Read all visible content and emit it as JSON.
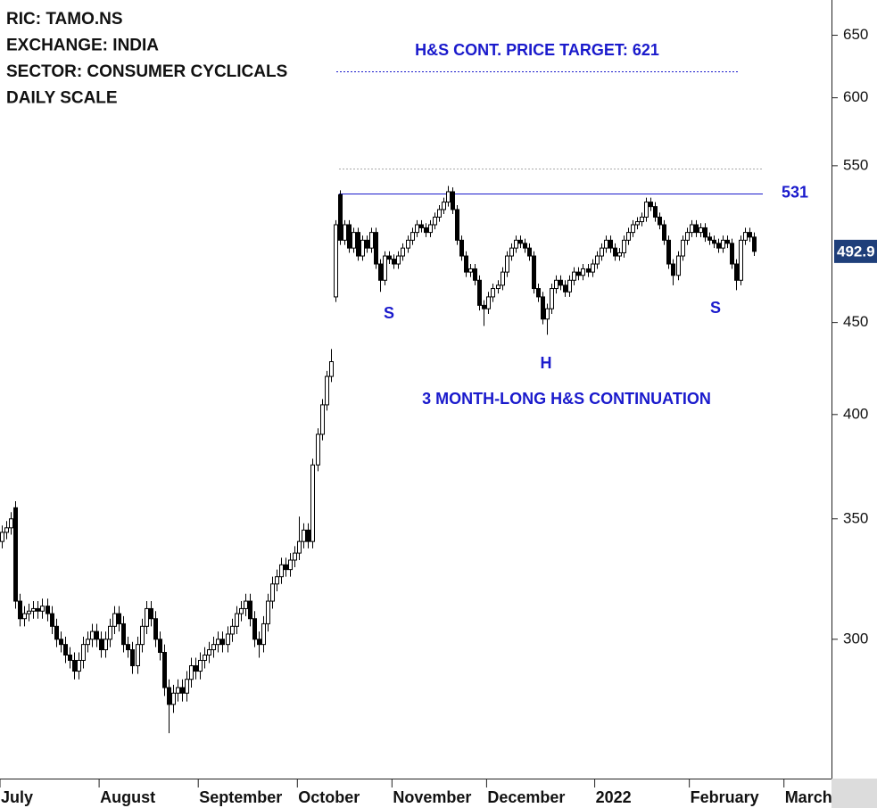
{
  "chart_data": {
    "type": "candlestick",
    "header_lines": [
      "RIC: TAMO.NS",
      "EXCHANGE: INDIA",
      "SECTOR: CONSUMER CYCLICALS",
      "DAILY SCALE"
    ],
    "annotations": [
      "H&S CONT. PRICE TARGET: 621",
      "S",
      "H",
      "S",
      "3 MONTH-LONG H&S CONTINUATION"
    ],
    "log_scale": true,
    "ylim": [
      251,
      680
    ],
    "yticks": [
      300,
      350,
      400,
      450,
      550,
      600,
      650
    ],
    "up_color": "#ffffff",
    "down_color": "#000000",
    "last_price_color": "#1f3f7a",
    "reference_lines": [
      {
        "value": 531,
        "color": "#1a1acc",
        "style": "solid"
      },
      {
        "value": 621,
        "color": "#1a1acc",
        "style": "dotted"
      },
      {
        "value": 548,
        "color": "#aaaaaa",
        "style": "dotted"
      }
    ],
    "categories": [
      "July",
      null,
      null,
      null,
      null,
      null,
      null,
      null,
      null,
      null,
      null,
      null,
      null,
      null,
      null,
      null,
      null,
      null,
      null,
      null,
      null,
      null,
      "August",
      null,
      null,
      null,
      null,
      null,
      null,
      null,
      null,
      null,
      null,
      null,
      null,
      null,
      null,
      null,
      null,
      null,
      null,
      null,
      null,
      null,
      "September",
      null,
      null,
      null,
      null,
      null,
      null,
      null,
      null,
      null,
      null,
      null,
      null,
      null,
      null,
      null,
      null,
      null,
      null,
      null,
      null,
      null,
      "October",
      null,
      null,
      null,
      null,
      null,
      null,
      null,
      null,
      null,
      null,
      null,
      null,
      null,
      null,
      null,
      null,
      null,
      null,
      null,
      null,
      "November",
      null,
      null,
      null,
      null,
      null,
      null,
      null,
      null,
      null,
      null,
      null,
      null,
      null,
      null,
      null,
      null,
      null,
      null,
      null,
      null,
      "December",
      null,
      null,
      null,
      null,
      null,
      null,
      null,
      null,
      null,
      null,
      null,
      null,
      null,
      null,
      null,
      null,
      null,
      null,
      null,
      null,
      null,
      null,
      null,
      "2022",
      null,
      null,
      null,
      null,
      null,
      null,
      null,
      null,
      null,
      null,
      null,
      null,
      null,
      null,
      null,
      null,
      null,
      null,
      null,
      null,
      "February",
      null,
      null,
      null,
      null,
      null,
      null,
      null,
      null,
      null,
      null,
      null,
      null,
      null,
      null,
      null,
      null,
      null,
      null,
      null,
      null,
      "March",
      null,
      null,
      null,
      null,
      null,
      null,
      null,
      null,
      null
    ],
    "open": [
      340,
      344,
      346,
      355,
      315,
      308,
      310,
      311,
      312,
      311,
      313,
      310,
      305,
      300,
      298,
      294,
      292,
      288,
      292,
      298,
      300,
      303,
      300,
      296,
      300,
      305,
      310,
      306,
      298,
      296,
      290,
      298,
      305,
      312,
      308,
      300,
      295,
      282,
      276,
      280,
      282,
      280,
      285,
      290,
      288,
      292,
      294,
      296,
      298,
      300,
      298,
      302,
      305,
      310,
      312,
      315,
      308,
      300,
      298,
      306,
      315,
      322,
      325,
      330,
      328,
      332,
      335,
      340,
      345,
      340,
      375,
      390,
      405,
      420,
      465,
      530,
      500,
      510,
      495,
      505,
      490,
      500,
      495,
      505,
      485,
      475,
      490,
      488,
      485,
      490,
      495,
      500,
      505,
      510,
      508,
      505,
      510,
      515,
      520,
      525,
      532,
      520,
      500,
      490,
      480,
      482,
      475,
      460,
      458,
      465,
      470,
      472,
      480,
      490,
      495,
      500,
      498,
      495,
      490,
      470,
      465,
      452,
      458,
      470,
      475,
      472,
      468,
      475,
      480,
      478,
      482,
      480,
      485,
      490,
      495,
      500,
      495,
      490,
      492,
      500,
      505,
      510,
      512,
      515,
      525,
      522,
      515,
      510,
      500,
      485,
      478,
      490,
      500,
      505,
      510,
      505,
      508,
      502,
      500,
      498,
      495,
      500,
      498,
      485,
      475,
      500,
      505,
      502,
      null,
      null,
      null,
      null,
      null,
      null,
      null,
      null,
      null,
      null,
      null,
      null,
      null,
      null,
      null,
      null
    ],
    "high": [
      347,
      349,
      353,
      358,
      318,
      313,
      314,
      315,
      315,
      316,
      316,
      313,
      308,
      303,
      301,
      297,
      295,
      295,
      301,
      303,
      306,
      306,
      303,
      303,
      308,
      313,
      313,
      309,
      301,
      299,
      301,
      308,
      315,
      315,
      311,
      303,
      298,
      285,
      283,
      285,
      285,
      288,
      293,
      293,
      295,
      297,
      299,
      301,
      303,
      303,
      305,
      308,
      313,
      315,
      318,
      318,
      311,
      303,
      309,
      318,
      325,
      328,
      333,
      333,
      335,
      338,
      351,
      348,
      348,
      378,
      393,
      408,
      423,
      435,
      513,
      533,
      513,
      513,
      508,
      508,
      503,
      503,
      508,
      508,
      488,
      493,
      493,
      491,
      493,
      498,
      503,
      508,
      513,
      513,
      511,
      513,
      518,
      523,
      528,
      536,
      535,
      523,
      503,
      493,
      485,
      485,
      478,
      463,
      468,
      473,
      475,
      483,
      493,
      498,
      503,
      503,
      501,
      498,
      493,
      473,
      468,
      461,
      473,
      478,
      478,
      475,
      478,
      483,
      483,
      485,
      485,
      488,
      493,
      498,
      503,
      503,
      498,
      495,
      503,
      508,
      513,
      515,
      518,
      528,
      528,
      525,
      518,
      513,
      503,
      488,
      493,
      503,
      508,
      513,
      513,
      511,
      511,
      505,
      503,
      501,
      503,
      503,
      501,
      488,
      503,
      508,
      508,
      505,
      null,
      null,
      null,
      null,
      null,
      null,
      null,
      null,
      null,
      null,
      null,
      null,
      null,
      null,
      null,
      null
    ],
    "low": [
      337,
      341,
      343,
      312,
      305,
      305,
      307,
      308,
      308,
      308,
      307,
      302,
      297,
      295,
      291,
      289,
      285,
      285,
      289,
      295,
      297,
      297,
      293,
      293,
      297,
      302,
      303,
      295,
      293,
      287,
      287,
      295,
      302,
      305,
      297,
      292,
      279,
      266,
      273,
      277,
      277,
      277,
      282,
      285,
      285,
      289,
      291,
      293,
      295,
      295,
      295,
      299,
      302,
      307,
      309,
      305,
      297,
      293,
      295,
      303,
      312,
      319,
      322,
      325,
      325,
      329,
      332,
      337,
      337,
      337,
      372,
      387,
      402,
      417,
      462,
      497,
      497,
      492,
      492,
      487,
      487,
      492,
      492,
      482,
      468,
      472,
      485,
      482,
      482,
      487,
      492,
      497,
      502,
      505,
      502,
      502,
      507,
      512,
      517,
      522,
      517,
      497,
      487,
      477,
      477,
      472,
      457,
      448,
      455,
      462,
      467,
      469,
      477,
      487,
      492,
      495,
      492,
      487,
      467,
      462,
      449,
      443,
      455,
      467,
      469,
      465,
      465,
      472,
      475,
      475,
      477,
      477,
      482,
      487,
      492,
      492,
      487,
      487,
      489,
      497,
      502,
      507,
      509,
      512,
      519,
      512,
      507,
      497,
      482,
      472,
      475,
      487,
      497,
      502,
      502,
      502,
      499,
      497,
      495,
      492,
      492,
      495,
      482,
      469,
      472,
      497,
      499,
      490,
      null,
      null,
      null,
      null,
      null,
      null,
      null,
      null,
      null,
      null,
      null,
      null,
      null,
      null,
      null,
      null
    ],
    "close": [
      344,
      346,
      350,
      315,
      308,
      310,
      311,
      312,
      311,
      313,
      310,
      305,
      300,
      298,
      294,
      292,
      288,
      292,
      298,
      300,
      303,
      300,
      296,
      300,
      305,
      310,
      306,
      298,
      296,
      290,
      298,
      305,
      312,
      308,
      300,
      295,
      282,
      276,
      280,
      282,
      280,
      285,
      290,
      288,
      292,
      294,
      296,
      298,
      300,
      298,
      302,
      305,
      310,
      312,
      315,
      308,
      300,
      298,
      306,
      315,
      322,
      325,
      330,
      328,
      332,
      335,
      340,
      345,
      340,
      375,
      390,
      405,
      420,
      428,
      510,
      500,
      510,
      495,
      505,
      490,
      500,
      495,
      505,
      485,
      475,
      490,
      488,
      485,
      490,
      495,
      500,
      505,
      510,
      508,
      505,
      510,
      515,
      520,
      525,
      532,
      520,
      500,
      490,
      480,
      482,
      475,
      460,
      458,
      465,
      470,
      472,
      480,
      490,
      495,
      500,
      498,
      495,
      490,
      470,
      465,
      452,
      458,
      470,
      475,
      472,
      468,
      475,
      480,
      478,
      482,
      480,
      485,
      490,
      495,
      500,
      495,
      490,
      492,
      500,
      505,
      510,
      512,
      515,
      525,
      522,
      515,
      510,
      500,
      485,
      478,
      490,
      500,
      505,
      510,
      505,
      508,
      502,
      500,
      498,
      495,
      500,
      498,
      485,
      475,
      500,
      505,
      502,
      492.9,
      null,
      null,
      null,
      null,
      null,
      null,
      null,
      null,
      null,
      null,
      null,
      null,
      null,
      null,
      null,
      null
    ]
  }
}
